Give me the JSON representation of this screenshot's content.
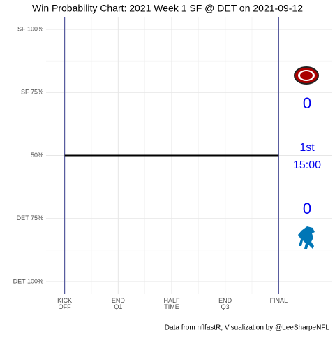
{
  "chart_data": {
    "type": "line",
    "title": "Win Probability Chart: 2021 Week 1 SF @ DET on 2021-09-12",
    "caption": "Data from nflfastR, Visualization by @LeeSharpeNFL",
    "x": [
      0,
      3600
    ],
    "series": [
      {
        "name": "Win Probability",
        "color": "#000000",
        "values": [
          50,
          50
        ]
      }
    ],
    "xlim": [
      -900,
      4500
    ],
    "xticks": [
      {
        "value": 0,
        "label": [
          "KICK",
          "OFF"
        ]
      },
      {
        "value": 900,
        "label": [
          "END",
          "Q1"
        ]
      },
      {
        "value": 1800,
        "label": [
          "HALF",
          "TIME"
        ]
      },
      {
        "value": 2700,
        "label": [
          "END",
          "Q3"
        ]
      },
      {
        "value": 3600,
        "label": [
          "FINAL"
        ]
      }
    ],
    "ylim": [
      -5,
      105
    ],
    "yticks": [
      {
        "value": 100,
        "label": "SF 100%"
      },
      {
        "value": 75,
        "label": "SF 75%"
      },
      {
        "value": 50,
        "label": "50%"
      },
      {
        "value": 25,
        "label": "DET 75%"
      },
      {
        "value": 0,
        "label": "DET 100%"
      }
    ],
    "grid": true,
    "boundary_color": "#3b3f8f",
    "annotations": {
      "color": "#0000ee",
      "away_score": 0,
      "home_score": 0,
      "quarter": "1st",
      "clock": "15:00"
    }
  }
}
